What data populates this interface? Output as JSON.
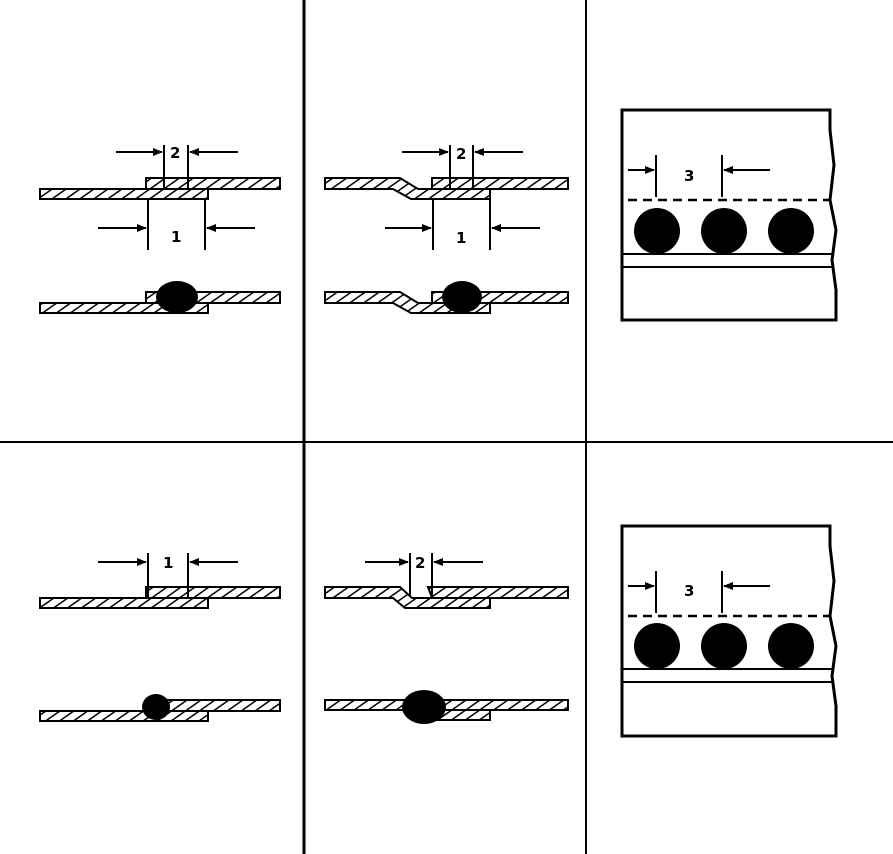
{
  "labels": {
    "p1_overlap": "1",
    "p1_gap": "2",
    "p2_overlap": "1",
    "p2_gap": "2",
    "p3_pitch": "3",
    "p4_overlap": "1",
    "p5_gap": "2",
    "p6_pitch": "3"
  }
}
